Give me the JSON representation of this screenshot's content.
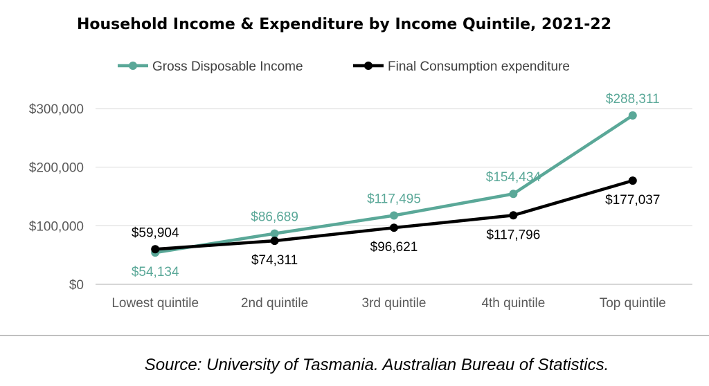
{
  "chart_data": {
    "type": "line",
    "title": "Household Income & Expenditure by Income Quintile, 2021-22",
    "categories": [
      "Lowest quintile",
      "2nd quintile",
      "3rd quintile",
      "4th quintile",
      "Top quintile"
    ],
    "y_ticks": [
      "$0",
      "$100,000",
      "$200,000",
      "$300,000"
    ],
    "ylim": [
      0,
      300000
    ],
    "grid": true,
    "legend_position": "top",
    "series": [
      {
        "name": "Gross Disposable Income",
        "values": [
          54134,
          86689,
          117495,
          154434,
          288311
        ],
        "labels": [
          "$54,134",
          "$86,689",
          "$117,495",
          "$154,434",
          "$288,311"
        ],
        "color": "#5aa898"
      },
      {
        "name": "Final Consumption expenditure",
        "values": [
          59904,
          74311,
          96621,
          117796,
          177037
        ],
        "labels": [
          "$59,904",
          "$74,311",
          "$96,621",
          "$117,796",
          "$177,037"
        ],
        "color": "#000000"
      }
    ],
    "source": "Source: University of Tasmania. Australian Bureau of Statistics."
  }
}
